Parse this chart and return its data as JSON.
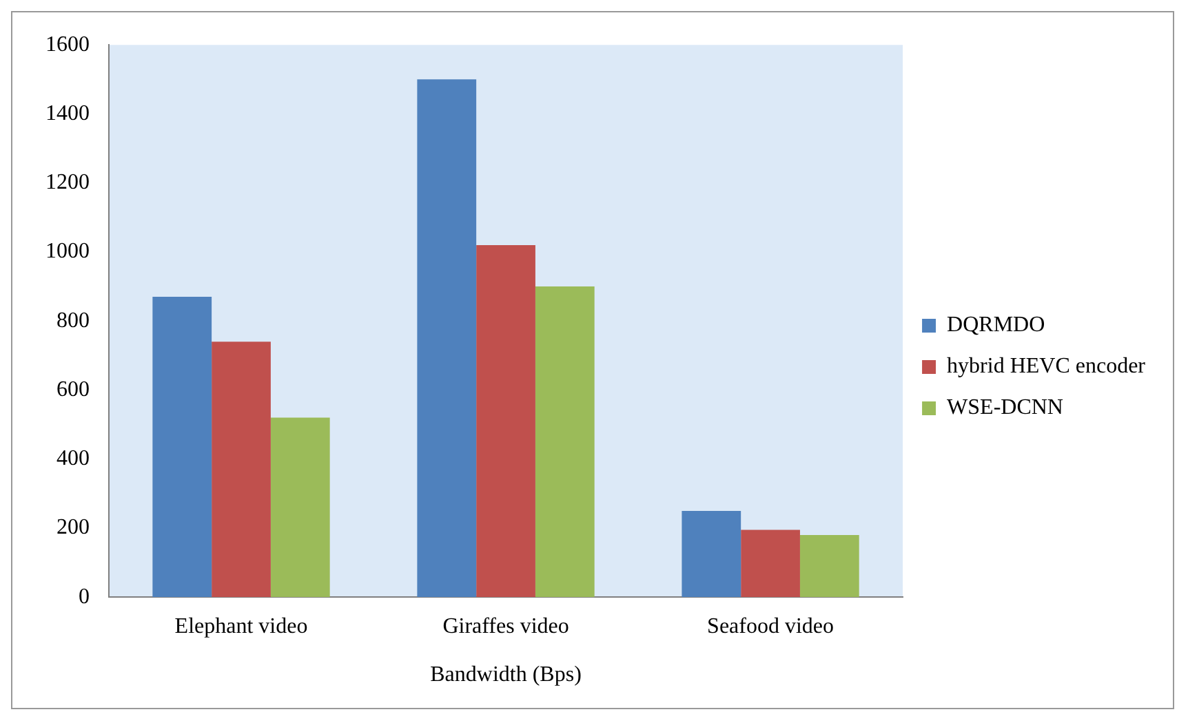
{
  "chart_data": {
    "type": "bar",
    "xlabel": "Bandwidth (Bps)",
    "categories": [
      "Elephant video",
      "Giraffes video",
      "Seafood video"
    ],
    "series": [
      {
        "name": "DQRMDO",
        "color": "#4f81bd",
        "values": [
          870,
          1500,
          250
        ]
      },
      {
        "name": "hybrid HEVC encoder",
        "color": "#c0504d",
        "values": [
          740,
          1020,
          195
        ]
      },
      {
        "name": "WSE-DCNN",
        "color": "#9bbb59",
        "values": [
          520,
          900,
          180
        ]
      }
    ],
    "ylim": [
      0,
      1600
    ],
    "yticks": [
      0,
      200,
      400,
      600,
      800,
      1000,
      1200,
      1400,
      1600
    ],
    "grid": false,
    "legend": "right"
  }
}
